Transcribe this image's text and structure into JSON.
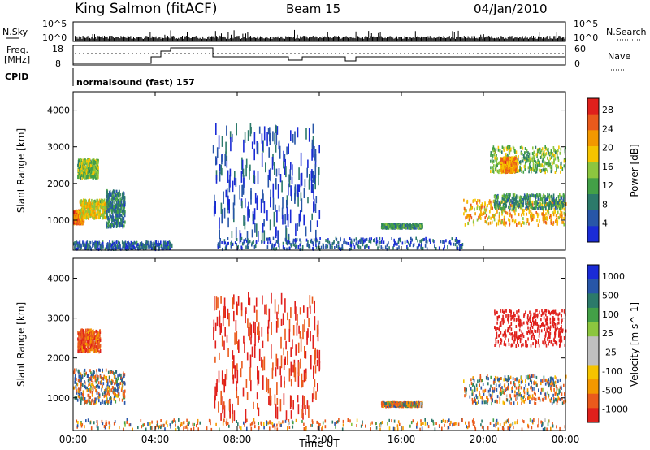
{
  "header": {
    "station": "King Salmon (fitACF)",
    "beam": "Beam 15",
    "date": "04/Jan/2010"
  },
  "summary_panel": {
    "nsky_label": "N.Sky",
    "nsearch_label": "N.Search",
    "freq_label_line1": "Freq.",
    "freq_label_line2": "[MHz]",
    "nave_label": "Nave",
    "cpid_label": "CPID",
    "left_ticks_top": [
      "10^5",
      "10^0"
    ],
    "right_ticks_top": [
      "10^5",
      "10^0"
    ],
    "left_ticks_freq": [
      "18",
      "8"
    ],
    "right_ticks_nave": [
      "60",
      "0"
    ],
    "cpid_text": "normalsound (fast) 157",
    "colors": {
      "black": "#000000"
    }
  },
  "x_axis": {
    "label": "Time UT",
    "ticks": [
      "00:00",
      "04:00",
      "08:00",
      "12:00",
      "16:00",
      "20:00",
      "00:00"
    ]
  },
  "chart_data": [
    {
      "type": "heatmap",
      "title": "",
      "xlabel": "Time UT",
      "ylabel": "Slant Range [km]",
      "xlim": [
        0,
        24
      ],
      "ylim": [
        180,
        4500
      ],
      "yticks": [
        "1000",
        "2000",
        "3000",
        "4000"
      ],
      "colorbar": {
        "label": "Power [dB]",
        "ticks": [
          "4",
          "8",
          "12",
          "16",
          "20",
          "24",
          "28"
        ],
        "range": [
          0,
          30
        ],
        "colors": [
          "#1a2bd6",
          "#2856a8",
          "#2c7a6a",
          "#43a047",
          "#8cc63f",
          "#f5c400",
          "#f39800",
          "#e95a1c",
          "#e0201c"
        ]
      },
      "features": [
        {
          "t": [
            0.0,
            0.5
          ],
          "range": [
            900,
            1250
          ],
          "value": 24
        },
        {
          "t": [
            0.3,
            1.6
          ],
          "range": [
            1050,
            1550
          ],
          "value": 18
        },
        {
          "t": [
            1.6,
            2.5
          ],
          "range": [
            800,
            1800
          ],
          "value": 8
        },
        {
          "t": [
            0.2,
            1.2
          ],
          "range": [
            2150,
            2650
          ],
          "value": 14
        },
        {
          "t": [
            0.0,
            4.8
          ],
          "range": [
            200,
            400
          ],
          "value": 6
        },
        {
          "t": [
            6.8,
            12.0
          ],
          "range": [
            500,
            3500
          ],
          "value": 4,
          "sparse": true
        },
        {
          "t": [
            7.0,
            19.0
          ],
          "range": [
            200,
            500
          ],
          "value": 5
        },
        {
          "t": [
            15.0,
            17.0
          ],
          "range": [
            780,
            880
          ],
          "value": 10
        },
        {
          "t": [
            19.0,
            24.0
          ],
          "range": [
            850,
            1550
          ],
          "value": 20
        },
        {
          "t": [
            20.5,
            24.0
          ],
          "range": [
            1300,
            1700
          ],
          "value": 10
        },
        {
          "t": [
            20.3,
            24.0
          ],
          "range": [
            2300,
            3000
          ],
          "value": 14
        },
        {
          "t": [
            20.8,
            21.6
          ],
          "range": [
            2300,
            2700
          ],
          "value": 22
        }
      ]
    },
    {
      "type": "heatmap",
      "title": "",
      "xlabel": "Time UT",
      "ylabel": "Slant Range [km]",
      "xlim": [
        0,
        24
      ],
      "ylim": [
        180,
        4500
      ],
      "yticks": [
        "1000",
        "2000",
        "3000",
        "4000"
      ],
      "colorbar": {
        "label": "Velocity [m s^-1]",
        "ticks": [
          "1000",
          "500",
          "100",
          "25",
          "-25",
          "-100",
          "-500",
          "-1000"
        ],
        "range": [
          -1000,
          1000
        ],
        "colors": [
          "#e0201c",
          "#ea5a1c",
          "#f39800",
          "#f5c400",
          "#c0c0c0",
          "#c0c0c0",
          "#8cc63f",
          "#43a047",
          "#2c7a6a",
          "#2856a8",
          "#1a2bd6"
        ]
      },
      "features": [
        {
          "t": [
            0.0,
            2.5
          ],
          "range": [
            850,
            1700
          ],
          "value": 0
        },
        {
          "t": [
            0.2,
            1.3
          ],
          "range": [
            2150,
            2700
          ],
          "value": -200
        },
        {
          "t": [
            0.0,
            24.0
          ],
          "range": [
            200,
            450
          ],
          "value": -60
        },
        {
          "t": [
            15.0,
            17.0
          ],
          "range": [
            780,
            880
          ],
          "value": -60
        },
        {
          "t": [
            19.0,
            24.0
          ],
          "range": [
            850,
            1550
          ],
          "value": 0
        },
        {
          "t": [
            20.5,
            24.0
          ],
          "range": [
            2300,
            3200
          ],
          "value": -500
        },
        {
          "t": [
            6.8,
            12.0
          ],
          "range": [
            500,
            3500
          ],
          "value": -300,
          "sparse": true
        }
      ]
    }
  ]
}
